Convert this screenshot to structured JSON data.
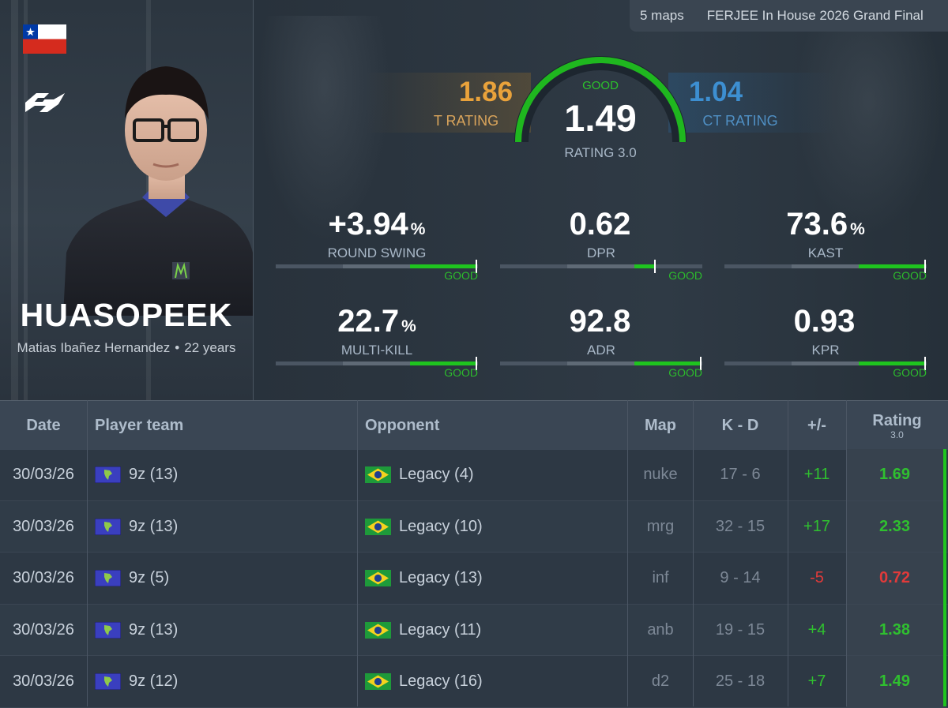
{
  "event": {
    "maps": "5 maps",
    "name": "FERJEE In House 2026 Grand Final"
  },
  "player": {
    "nickname": "HUASOPEEK",
    "real_name": "Matias Ibañez Hernandez",
    "separator": "•",
    "age": "22 years",
    "country_flag": "chile-flag-icon",
    "team_logo": "9z-logo"
  },
  "rating": {
    "t_value": "1.86",
    "t_label": "T RATING",
    "ct_value": "1.04",
    "ct_label": "CT RATING",
    "overall_value": "1.49",
    "overall_label": "RATING 3.0",
    "overall_grade": "GOOD"
  },
  "stats": [
    {
      "value": "+3.94",
      "unit": "%",
      "label": "ROUND SWING",
      "grade": "GOOD",
      "level": 0.99
    },
    {
      "value": "0.62",
      "unit": "",
      "label": "DPR",
      "grade": "GOOD",
      "level": 0.76
    },
    {
      "value": "73.6",
      "unit": "%",
      "label": "KAST",
      "grade": "GOOD",
      "level": 0.99
    },
    {
      "value": "22.7",
      "unit": "%",
      "label": "MULTI-KILL",
      "grade": "GOOD",
      "level": 0.99
    },
    {
      "value": "92.8",
      "unit": "",
      "label": "ADR",
      "grade": "GOOD",
      "level": 0.99
    },
    {
      "value": "0.93",
      "unit": "",
      "label": "KPR",
      "grade": "GOOD",
      "level": 0.99
    }
  ],
  "table": {
    "headers": {
      "date": "Date",
      "player_team": "Player team",
      "opponent": "Opponent",
      "map": "Map",
      "kd": "K - D",
      "diff": "+/-",
      "rating": "Rating",
      "rating_sub": "3.0"
    },
    "rows": [
      {
        "date": "30/03/26",
        "team": "9z (13)",
        "opponent": "Legacy (4)",
        "map": "nuke",
        "kd": "17 - 6",
        "diff": "+11",
        "rating": "1.69",
        "status": "pos"
      },
      {
        "date": "30/03/26",
        "team": "9z (13)",
        "opponent": "Legacy (10)",
        "map": "mrg",
        "kd": "32 - 15",
        "diff": "+17",
        "rating": "2.33",
        "status": "pos"
      },
      {
        "date": "30/03/26",
        "team": "9z (5)",
        "opponent": "Legacy (13)",
        "map": "inf",
        "kd": "9 - 14",
        "diff": "-5",
        "rating": "0.72",
        "status": "neg"
      },
      {
        "date": "30/03/26",
        "team": "9z (13)",
        "opponent": "Legacy (11)",
        "map": "anb",
        "kd": "19 - 15",
        "diff": "+4",
        "rating": "1.38",
        "status": "pos"
      },
      {
        "date": "30/03/26",
        "team": "9z (12)",
        "opponent": "Legacy (16)",
        "map": "d2",
        "kd": "25 - 18",
        "diff": "+7",
        "rating": "1.49",
        "status": "pos"
      }
    ]
  },
  "colors": {
    "good": "#1fc41f",
    "bad": "#e23a3a",
    "t_side": "#e9a23b",
    "ct_side": "#3d8fd1"
  }
}
